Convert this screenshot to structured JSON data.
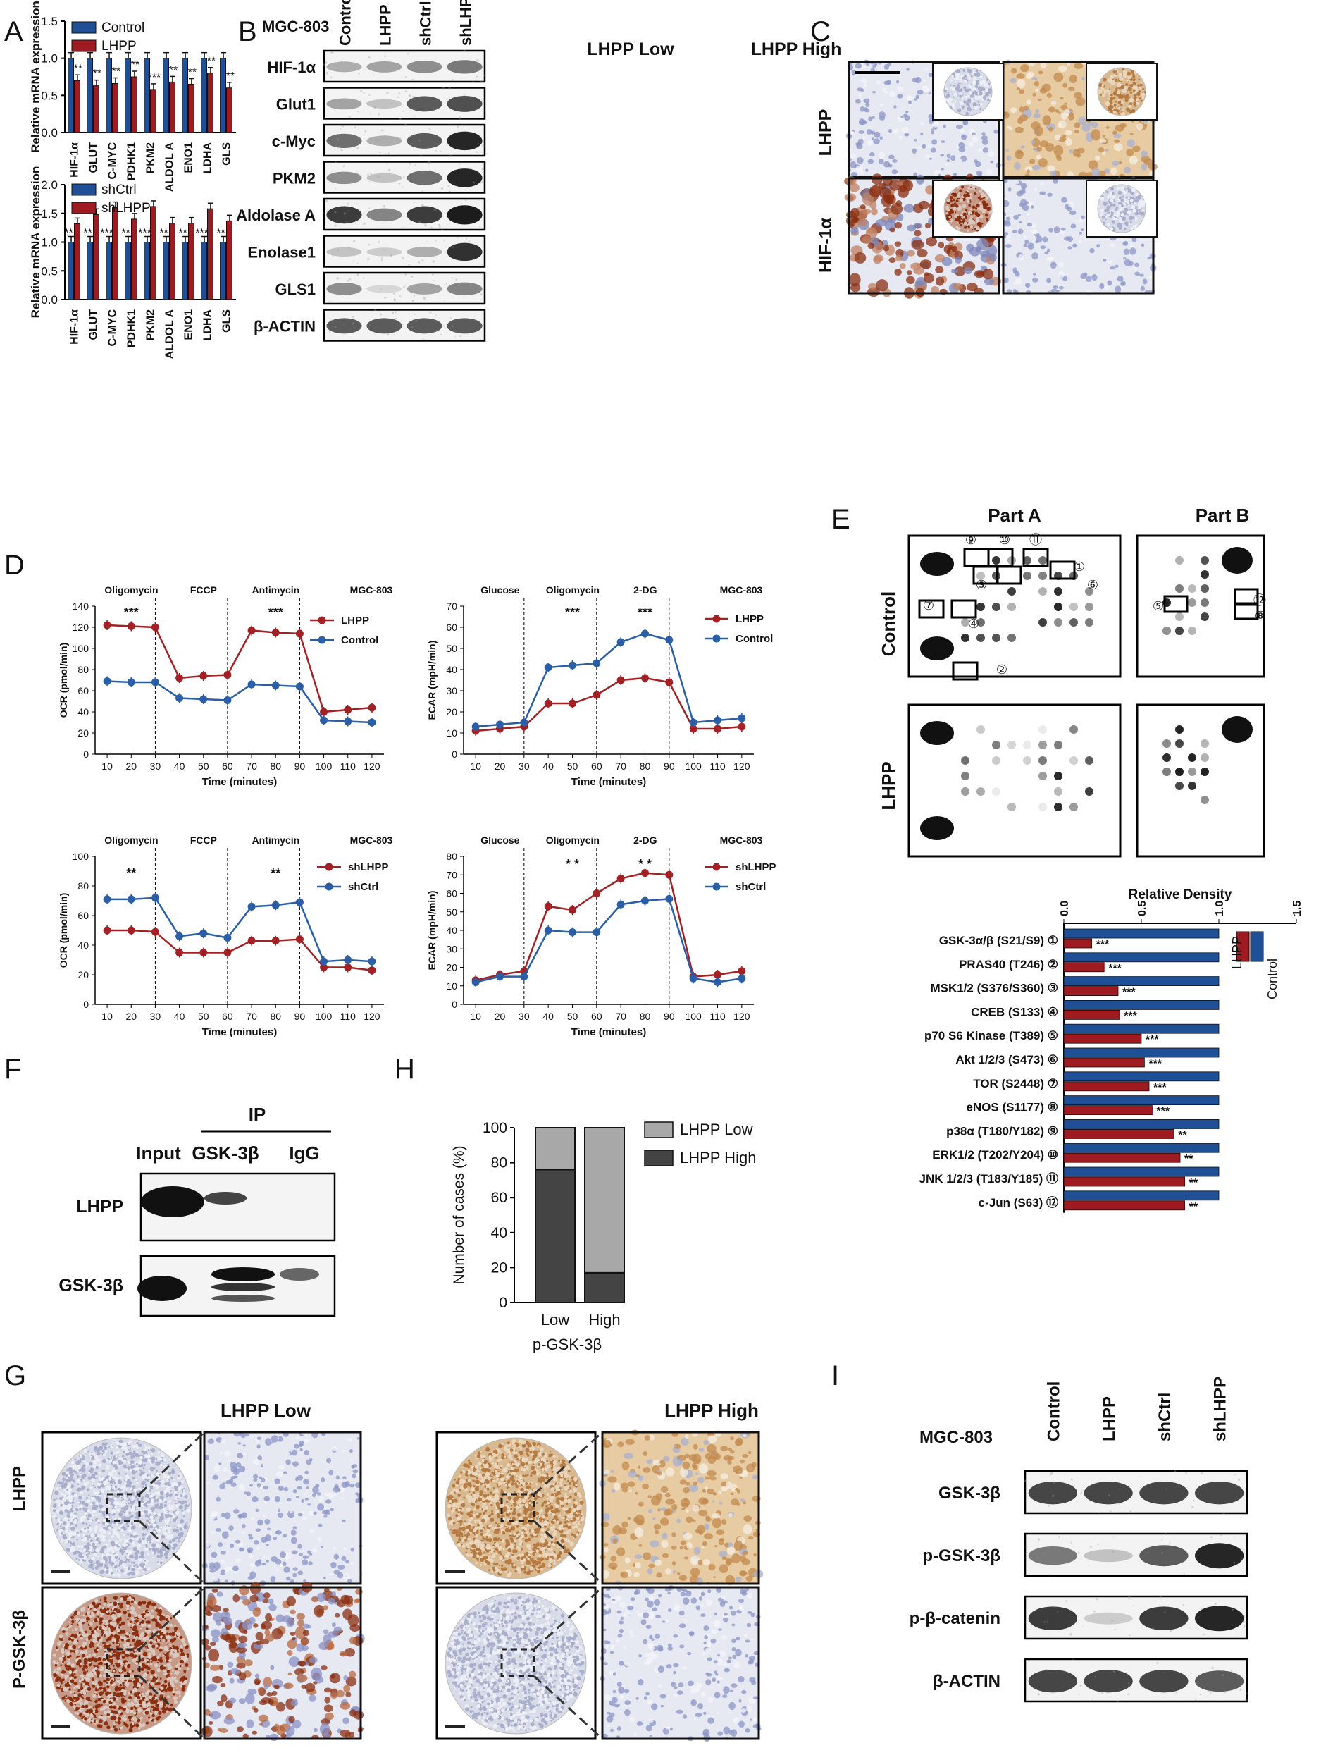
{
  "panel_letters": [
    "A",
    "B",
    "C",
    "D",
    "E",
    "F",
    "G",
    "H",
    "I"
  ],
  "colors": {
    "red": "#9e1b22",
    "blue": "#1f4f94",
    "dark": "#444444",
    "light": "#a8a8a8",
    "line_red": "#a32124",
    "line_blue": "#2a5fa8"
  },
  "chart_data": [
    {
      "id": "A1",
      "type": "bar",
      "ylabel": "Relative mRNA expression",
      "ylim": [
        0,
        1.5
      ],
      "yticks": [
        "0.0",
        "0.5",
        "1.0",
        "1.5"
      ],
      "categories": [
        "HIF-1α",
        "GLUT",
        "C-MYC",
        "PDHK1",
        "PKM2",
        "ALDOL A",
        "ENO1",
        "LDHA",
        "GLS"
      ],
      "series": [
        {
          "name": "Control",
          "values": [
            1,
            1,
            1,
            1,
            1,
            1,
            1,
            1,
            1
          ]
        },
        {
          "name": "LHPP",
          "values": [
            0.7,
            0.63,
            0.66,
            0.75,
            0.58,
            0.68,
            0.65,
            0.8,
            0.6
          ]
        }
      ],
      "significance": [
        "**",
        "**",
        "**",
        "**",
        "***",
        "**",
        "**",
        "**",
        "**"
      ]
    },
    {
      "id": "A2",
      "type": "bar",
      "ylabel": "Relative mRNA expression",
      "ylim": [
        0,
        2
      ],
      "yticks": [
        "0.0",
        "0.5",
        "1.0",
        "1.5",
        "2.0"
      ],
      "categories": [
        "HIF-1α",
        "GLUT",
        "C-MYC",
        "PDHK1",
        "PKM2",
        "ALDOL A",
        "ENO1",
        "LDHA",
        "GLS"
      ],
      "series": [
        {
          "name": "shCtrl",
          "values": [
            1,
            1,
            1,
            1,
            1,
            1,
            1,
            1,
            1
          ]
        },
        {
          "name": "shLHPP",
          "values": [
            1.32,
            1.48,
            1.6,
            1.4,
            1.62,
            1.33,
            1.33,
            1.58,
            1.37
          ]
        }
      ],
      "significance": [
        "**",
        "**",
        "***",
        "**",
        "***",
        "**",
        "**",
        "***",
        "**"
      ]
    },
    {
      "id": "D1",
      "type": "line",
      "ylabel": "OCR (pmol/min)",
      "xlabel": "Time (minutes)",
      "ylim": [
        0,
        140
      ],
      "yticks": [
        "0",
        "20",
        "40",
        "60",
        "80",
        "100",
        "120",
        "140"
      ],
      "x": [
        10,
        20,
        30,
        40,
        50,
        60,
        70,
        80,
        90,
        100,
        110,
        120
      ],
      "xticks": [
        "10",
        "20",
        "30",
        "40",
        "50",
        "60",
        "70",
        "80",
        "90",
        "100",
        "110",
        "120"
      ],
      "events": [
        "Oligomycin",
        "FCCP",
        "Antimycin"
      ],
      "event_x": [
        30,
        60,
        90
      ],
      "cell_line": "MGC-803",
      "stars": [
        {
          "x": 20,
          "text": "***"
        },
        {
          "x": 80,
          "text": "***"
        }
      ],
      "series": [
        {
          "name": "LHPP",
          "values": [
            122,
            121,
            120,
            72,
            74,
            75,
            117,
            115,
            114,
            40,
            42,
            44
          ]
        },
        {
          "name": "Control",
          "values": [
            69,
            68,
            68,
            53,
            52,
            51,
            66,
            65,
            64,
            32,
            31,
            30
          ]
        }
      ]
    },
    {
      "id": "D2",
      "type": "line",
      "ylabel": "ECAR (mpH/min)",
      "xlabel": "Time (minutes)",
      "ylim": [
        0,
        70
      ],
      "yticks": [
        "0",
        "10",
        "20",
        "30",
        "40",
        "50",
        "60",
        "70"
      ],
      "x": [
        10,
        20,
        30,
        40,
        50,
        60,
        70,
        80,
        90,
        100,
        110,
        120
      ],
      "xticks": [
        "10",
        "20",
        "30",
        "40",
        "50",
        "60",
        "70",
        "80",
        "90",
        "100",
        "110",
        "120"
      ],
      "events": [
        "Glucose",
        "Oligomycin",
        "2-DG"
      ],
      "event_x": [
        30,
        60,
        90
      ],
      "cell_line": "MGC-803",
      "stars": [
        {
          "x": 50,
          "text": "***"
        },
        {
          "x": 80,
          "text": "***"
        }
      ],
      "series": [
        {
          "name": "LHPP",
          "values": [
            11,
            12,
            13,
            24,
            24,
            28,
            35,
            36,
            34,
            12,
            12,
            13
          ]
        },
        {
          "name": "Control",
          "values": [
            13,
            14,
            15,
            41,
            42,
            43,
            53,
            57,
            54,
            15,
            16,
            17
          ]
        }
      ]
    },
    {
      "id": "D3",
      "type": "line",
      "ylabel": "OCR (pmol/min)",
      "xlabel": "Time (minutes)",
      "ylim": [
        0,
        100
      ],
      "yticks": [
        "0",
        "20",
        "40",
        "60",
        "80",
        "100"
      ],
      "x": [
        10,
        20,
        30,
        40,
        50,
        60,
        70,
        80,
        90,
        100,
        110,
        120
      ],
      "xticks": [
        "10",
        "20",
        "30",
        "40",
        "50",
        "60",
        "70",
        "80",
        "90",
        "100",
        "110",
        "120"
      ],
      "events": [
        "Oligomycin",
        "FCCP",
        "Antimycin"
      ],
      "event_x": [
        30,
        60,
        90
      ],
      "cell_line": "MGC-803",
      "stars": [
        {
          "x": 20,
          "text": "**"
        },
        {
          "x": 80,
          "text": "**"
        }
      ],
      "series": [
        {
          "name": "shLHPP",
          "values": [
            50,
            50,
            49,
            35,
            35,
            35,
            43,
            43,
            44,
            25,
            25,
            23
          ]
        },
        {
          "name": "shCtrl",
          "values": [
            71,
            71,
            72,
            46,
            48,
            45,
            66,
            67,
            69,
            29,
            30,
            29
          ]
        }
      ]
    },
    {
      "id": "D4",
      "type": "line",
      "ylabel": "ECAR (mpH/min)",
      "xlabel": "Time (minutes)",
      "ylim": [
        0,
        80
      ],
      "yticks": [
        "0",
        "10",
        "20",
        "30",
        "40",
        "50",
        "60",
        "70",
        "80"
      ],
      "x": [
        10,
        20,
        30,
        40,
        50,
        60,
        70,
        80,
        90,
        100,
        110,
        120
      ],
      "xticks": [
        "10",
        "20",
        "30",
        "40",
        "50",
        "60",
        "70",
        "80",
        "90",
        "100",
        "110",
        "120"
      ],
      "events": [
        "Glucose",
        "Oligomycin",
        "2-DG"
      ],
      "event_x": [
        30,
        60,
        90
      ],
      "cell_line": "MGC-803",
      "stars": [
        {
          "x": 50,
          "text": "* *"
        },
        {
          "x": 80,
          "text": "* *"
        }
      ],
      "series": [
        {
          "name": "shLHPP",
          "values": [
            13,
            16,
            18,
            53,
            51,
            60,
            68,
            71,
            70,
            15,
            16,
            18
          ]
        },
        {
          "name": "shCtrl",
          "values": [
            12,
            15,
            15,
            40,
            39,
            39,
            54,
            56,
            57,
            14,
            12,
            14
          ]
        }
      ]
    },
    {
      "id": "E",
      "type": "bar",
      "title": "Relative Density",
      "xlim": [
        0,
        1.5
      ],
      "xticks": [
        "0.0",
        "0.5",
        "1.0",
        "1.5"
      ],
      "categories": [
        "GSK-3α/β  (S21/S9) ①",
        "PRAS40  (T246) ②",
        "MSK1/2  (S376/S360) ③",
        "CREB  (S133) ④",
        "p70 S6 Kinase  (T389) ⑤",
        "Akt 1/2/3  (S473) ⑥",
        "TOR  (S2448) ⑦",
        "eNOS  (S1177) ⑧",
        "p38α  (T180/Y182) ⑨",
        "ERK1/2  (T202/Y204) ⑩",
        "JNK 1/2/3  (T183/Y185) ⑪",
        "c-Jun  (S63) ⑫"
      ],
      "series": [
        {
          "name": "Control",
          "values": [
            1,
            1,
            1,
            1,
            1,
            1,
            1,
            1,
            1,
            1,
            1,
            1
          ]
        },
        {
          "name": "LHPP",
          "values": [
            0.18,
            0.26,
            0.35,
            0.36,
            0.5,
            0.52,
            0.55,
            0.57,
            0.71,
            0.75,
            0.78,
            0.78
          ]
        }
      ],
      "significance": [
        "***",
        "***",
        "***",
        "***",
        "***",
        "***",
        "***",
        "***",
        "**",
        "**",
        "**",
        "**"
      ]
    },
    {
      "id": "H",
      "type": "bar",
      "ylabel": "Number of cases (%)",
      "xlabel": "p-GSK-3β",
      "ylim": [
        0,
        100
      ],
      "yticks": [
        "0",
        "20",
        "40",
        "60",
        "80",
        "100"
      ],
      "categories": [
        "Low",
        "High"
      ],
      "series": [
        {
          "name": "LHPP High",
          "values": [
            76,
            17
          ]
        },
        {
          "name": "LHPP Low",
          "values": [
            24,
            83
          ]
        }
      ]
    }
  ],
  "blot_B": {
    "cell_line": "MGC-803",
    "lanes": [
      "Control",
      "LHPP",
      "shCtrl",
      "shLHPP"
    ],
    "rows": [
      "HIF-1α",
      "Glut1",
      "c-Myc",
      "PKM2",
      "Aldolase  A",
      "Enolase1",
      "GLS1",
      "β-ACTIN"
    ],
    "intensity": [
      [
        0.3,
        0.35,
        0.45,
        0.55
      ],
      [
        0.35,
        0.2,
        0.7,
        0.75
      ],
      [
        0.6,
        0.3,
        0.7,
        0.95
      ],
      [
        0.45,
        0.2,
        0.6,
        0.95
      ],
      [
        0.85,
        0.5,
        0.85,
        1.0
      ],
      [
        0.2,
        0.15,
        0.3,
        0.9
      ],
      [
        0.45,
        0.1,
        0.35,
        0.5
      ],
      [
        0.7,
        0.7,
        0.7,
        0.7
      ]
    ]
  },
  "panel_c": {
    "cols": [
      "LHPP  Low",
      "LHPP  High"
    ],
    "rows": [
      "LHPP",
      "HIF-1α"
    ]
  },
  "panel_e": {
    "parts": [
      "Part A",
      "Part B"
    ],
    "rows": [
      "Control",
      "LHPP"
    ],
    "marks_a": [
      "⑨",
      "⑩",
      "⑪",
      "①",
      "③",
      "⑥",
      "⑦",
      "④",
      "②"
    ],
    "marks_b": [
      "⑤",
      "⑫",
      "⑧"
    ]
  },
  "panel_f": {
    "ip": "IP",
    "cols": [
      "Input",
      "GSK-3β",
      "IgG"
    ],
    "rows": [
      "LHPP",
      "GSK-3β"
    ]
  },
  "panel_g": {
    "cols": [
      "LHPP  Low",
      "LHPP  High"
    ],
    "rows": [
      "LHPP",
      "P-GSK-3β"
    ]
  },
  "panel_i": {
    "cell_line": "MGC-803",
    "lanes": [
      "Control",
      "LHPP",
      "shCtrl",
      "shLHPP"
    ],
    "rows": [
      "GSK-3β",
      "p-GSK-3β",
      "p-β-catenin",
      "β-ACTIN"
    ],
    "intensity": [
      [
        0.8,
        0.8,
        0.8,
        0.8
      ],
      [
        0.55,
        0.2,
        0.7,
        0.95
      ],
      [
        0.85,
        0.15,
        0.85,
        0.95
      ],
      [
        0.8,
        0.8,
        0.8,
        0.7
      ]
    ]
  }
}
